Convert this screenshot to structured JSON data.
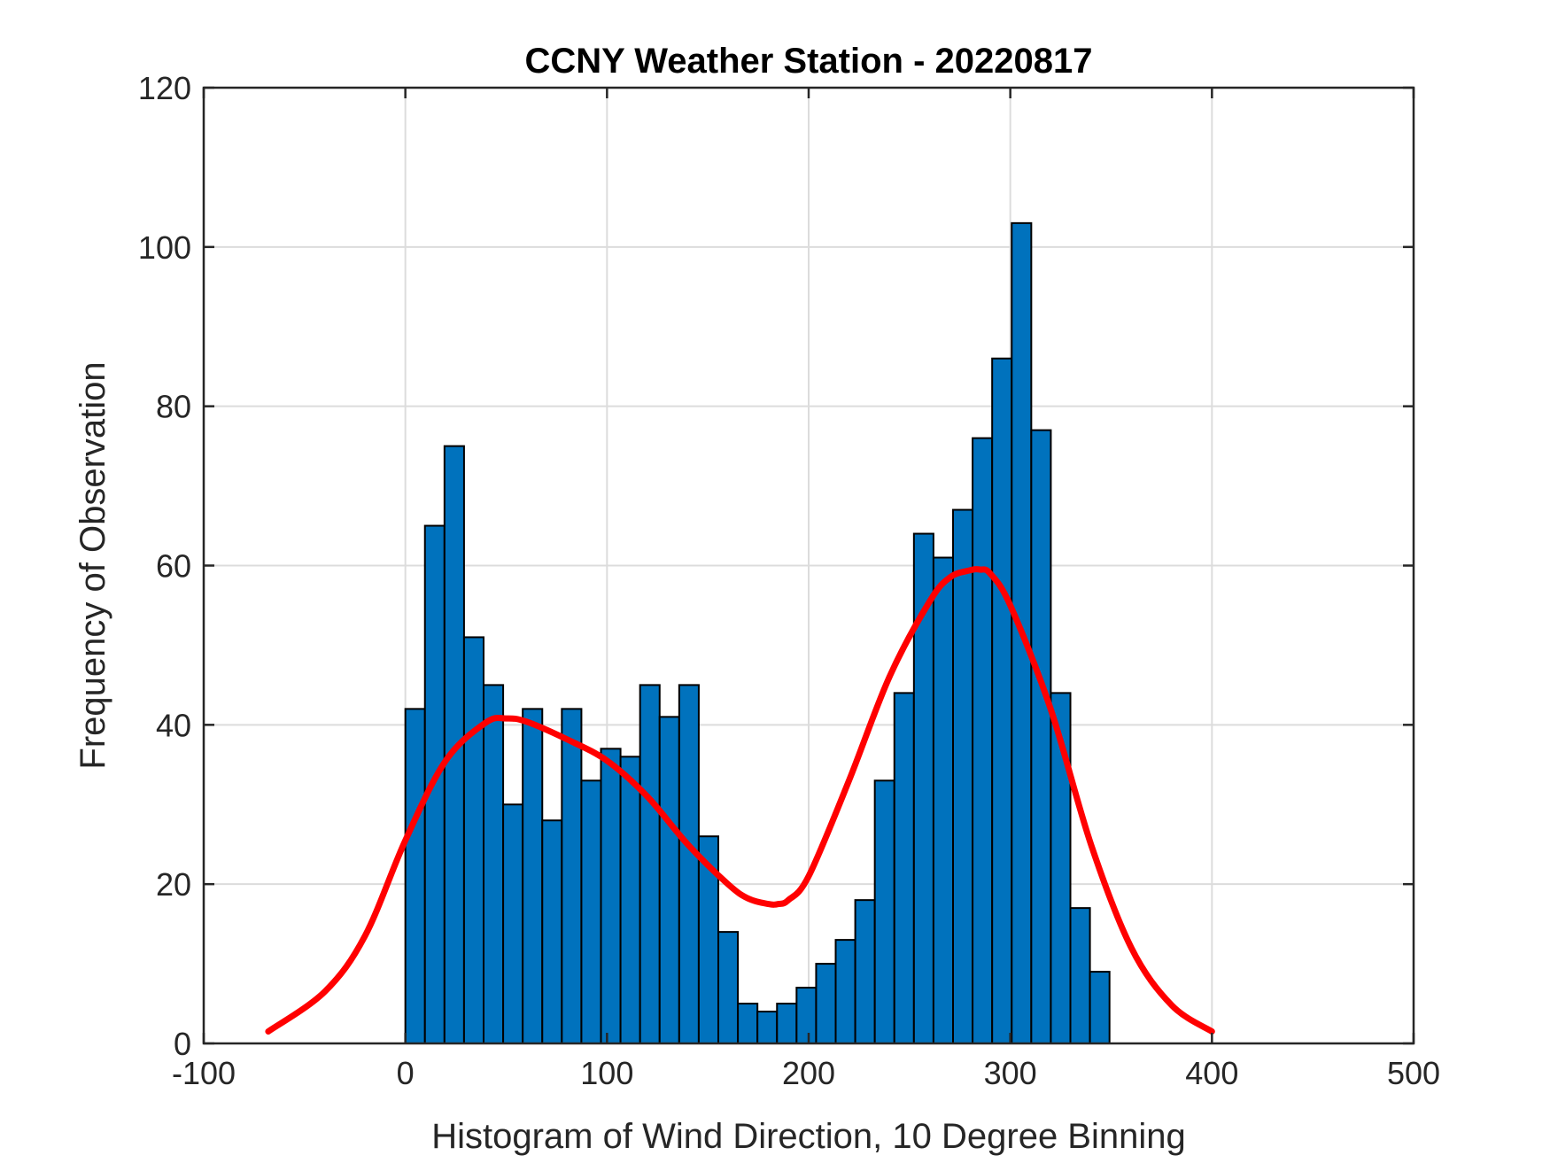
{
  "chart_data": {
    "type": "bar",
    "title": "CCNY Weather Station - 20220817",
    "xlabel": "Histogram of Wind Direction, 10 Degree Binning",
    "ylabel": "Frequency of Observation",
    "xlim": [
      -100,
      500
    ],
    "ylim": [
      0,
      120
    ],
    "xticks": [
      -100,
      0,
      100,
      200,
      300,
      400,
      500
    ],
    "yticks": [
      0,
      20,
      40,
      60,
      80,
      100,
      120
    ],
    "grid": true,
    "bin_width": 9.7,
    "bin_start": 0,
    "values": [
      42,
      65,
      75,
      51,
      45,
      30,
      42,
      28,
      42,
      33,
      37,
      36,
      45,
      41,
      45,
      26,
      14,
      5,
      4,
      5,
      7,
      10,
      13,
      18,
      33,
      44,
      64,
      61,
      67,
      76,
      86,
      103,
      77,
      44,
      17,
      9
    ],
    "colors": {
      "bar": "#0072BD",
      "bar_edge": "#000000",
      "fit": "#FF0000",
      "grid": "#DCDCDC",
      "axis": "#262626"
    },
    "fit_curve": {
      "name": "fit",
      "x": [
        -68,
        -40,
        -20,
        0,
        20,
        40,
        50,
        60,
        80,
        100,
        120,
        140,
        160,
        170,
        180,
        185,
        190,
        200,
        220,
        240,
        260,
        270,
        280,
        285,
        290,
        300,
        320,
        340,
        360,
        380,
        400
      ],
      "y": [
        1.5,
        6.5,
        13.5,
        25.5,
        35.5,
        40.3,
        40.8,
        40.4,
        38.2,
        35.5,
        31.0,
        25.0,
        20.0,
        18.2,
        17.5,
        17.5,
        18.0,
        21.0,
        33.0,
        46.0,
        55.5,
        58.5,
        59.4,
        59.5,
        59.0,
        55.0,
        42.0,
        25.0,
        12.0,
        4.8,
        1.5
      ]
    }
  }
}
